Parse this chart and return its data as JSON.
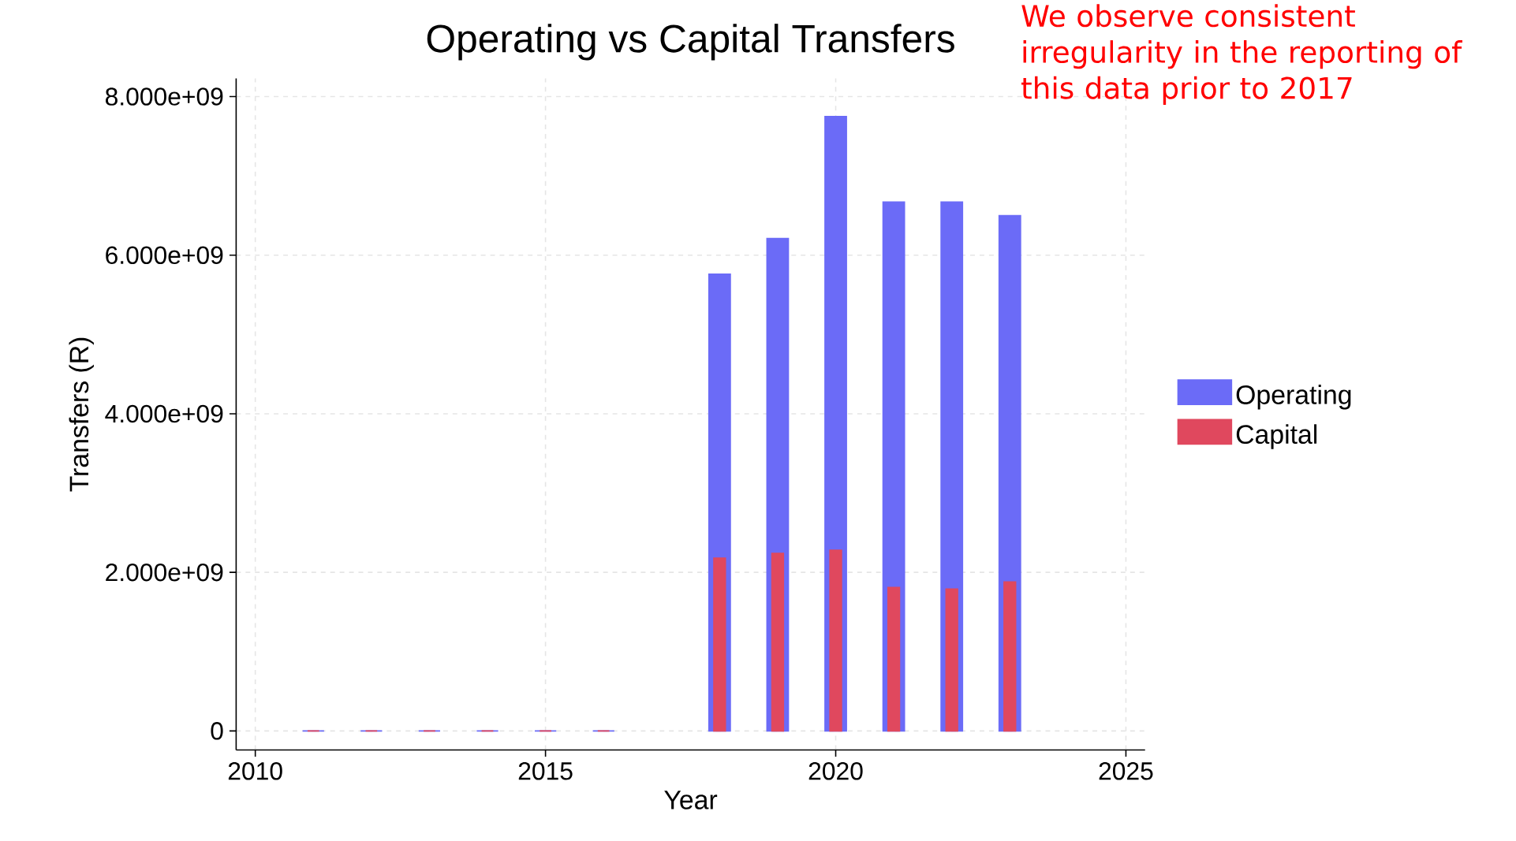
{
  "chart_data": {
    "type": "bar",
    "title": "Operating vs Capital Transfers",
    "xlabel": "Year",
    "ylabel": "Transfers (R)",
    "x": [
      2011,
      2012,
      2013,
      2014,
      2015,
      2016,
      2018,
      2019,
      2020,
      2021,
      2022,
      2023
    ],
    "series": [
      {
        "name": "Operating",
        "color": "#6b6bf7",
        "values": [
          0,
          0,
          0,
          0,
          0,
          0,
          5760000000,
          6210000000,
          7750000000,
          6670000000,
          6670000000,
          6500000000
        ]
      },
      {
        "name": "Capital",
        "color": "#e0485e",
        "values": [
          0,
          0,
          0,
          0,
          0,
          0,
          2180000000,
          2240000000,
          2280000000,
          1810000000,
          1790000000,
          1880000000
        ]
      }
    ],
    "xlim": [
      2009.67,
      2025.33
    ],
    "xticks": [
      2010,
      2015,
      2020,
      2025
    ],
    "ylim": [
      -240000000,
      8230000000
    ],
    "yticks": [
      0,
      {
        "value": 2000000000,
        "label": "2.000e+09"
      },
      {
        "value": 4000000000,
        "label": "4.000e+09"
      },
      {
        "value": 6000000000,
        "label": "6.000e+09"
      },
      {
        "value": 8000000000,
        "label": "8.000e+09"
      }
    ],
    "grid": true,
    "legend": "right",
    "annotations": [
      "We observe consistent irregularity in the reporting of this data prior to 2017"
    ]
  }
}
